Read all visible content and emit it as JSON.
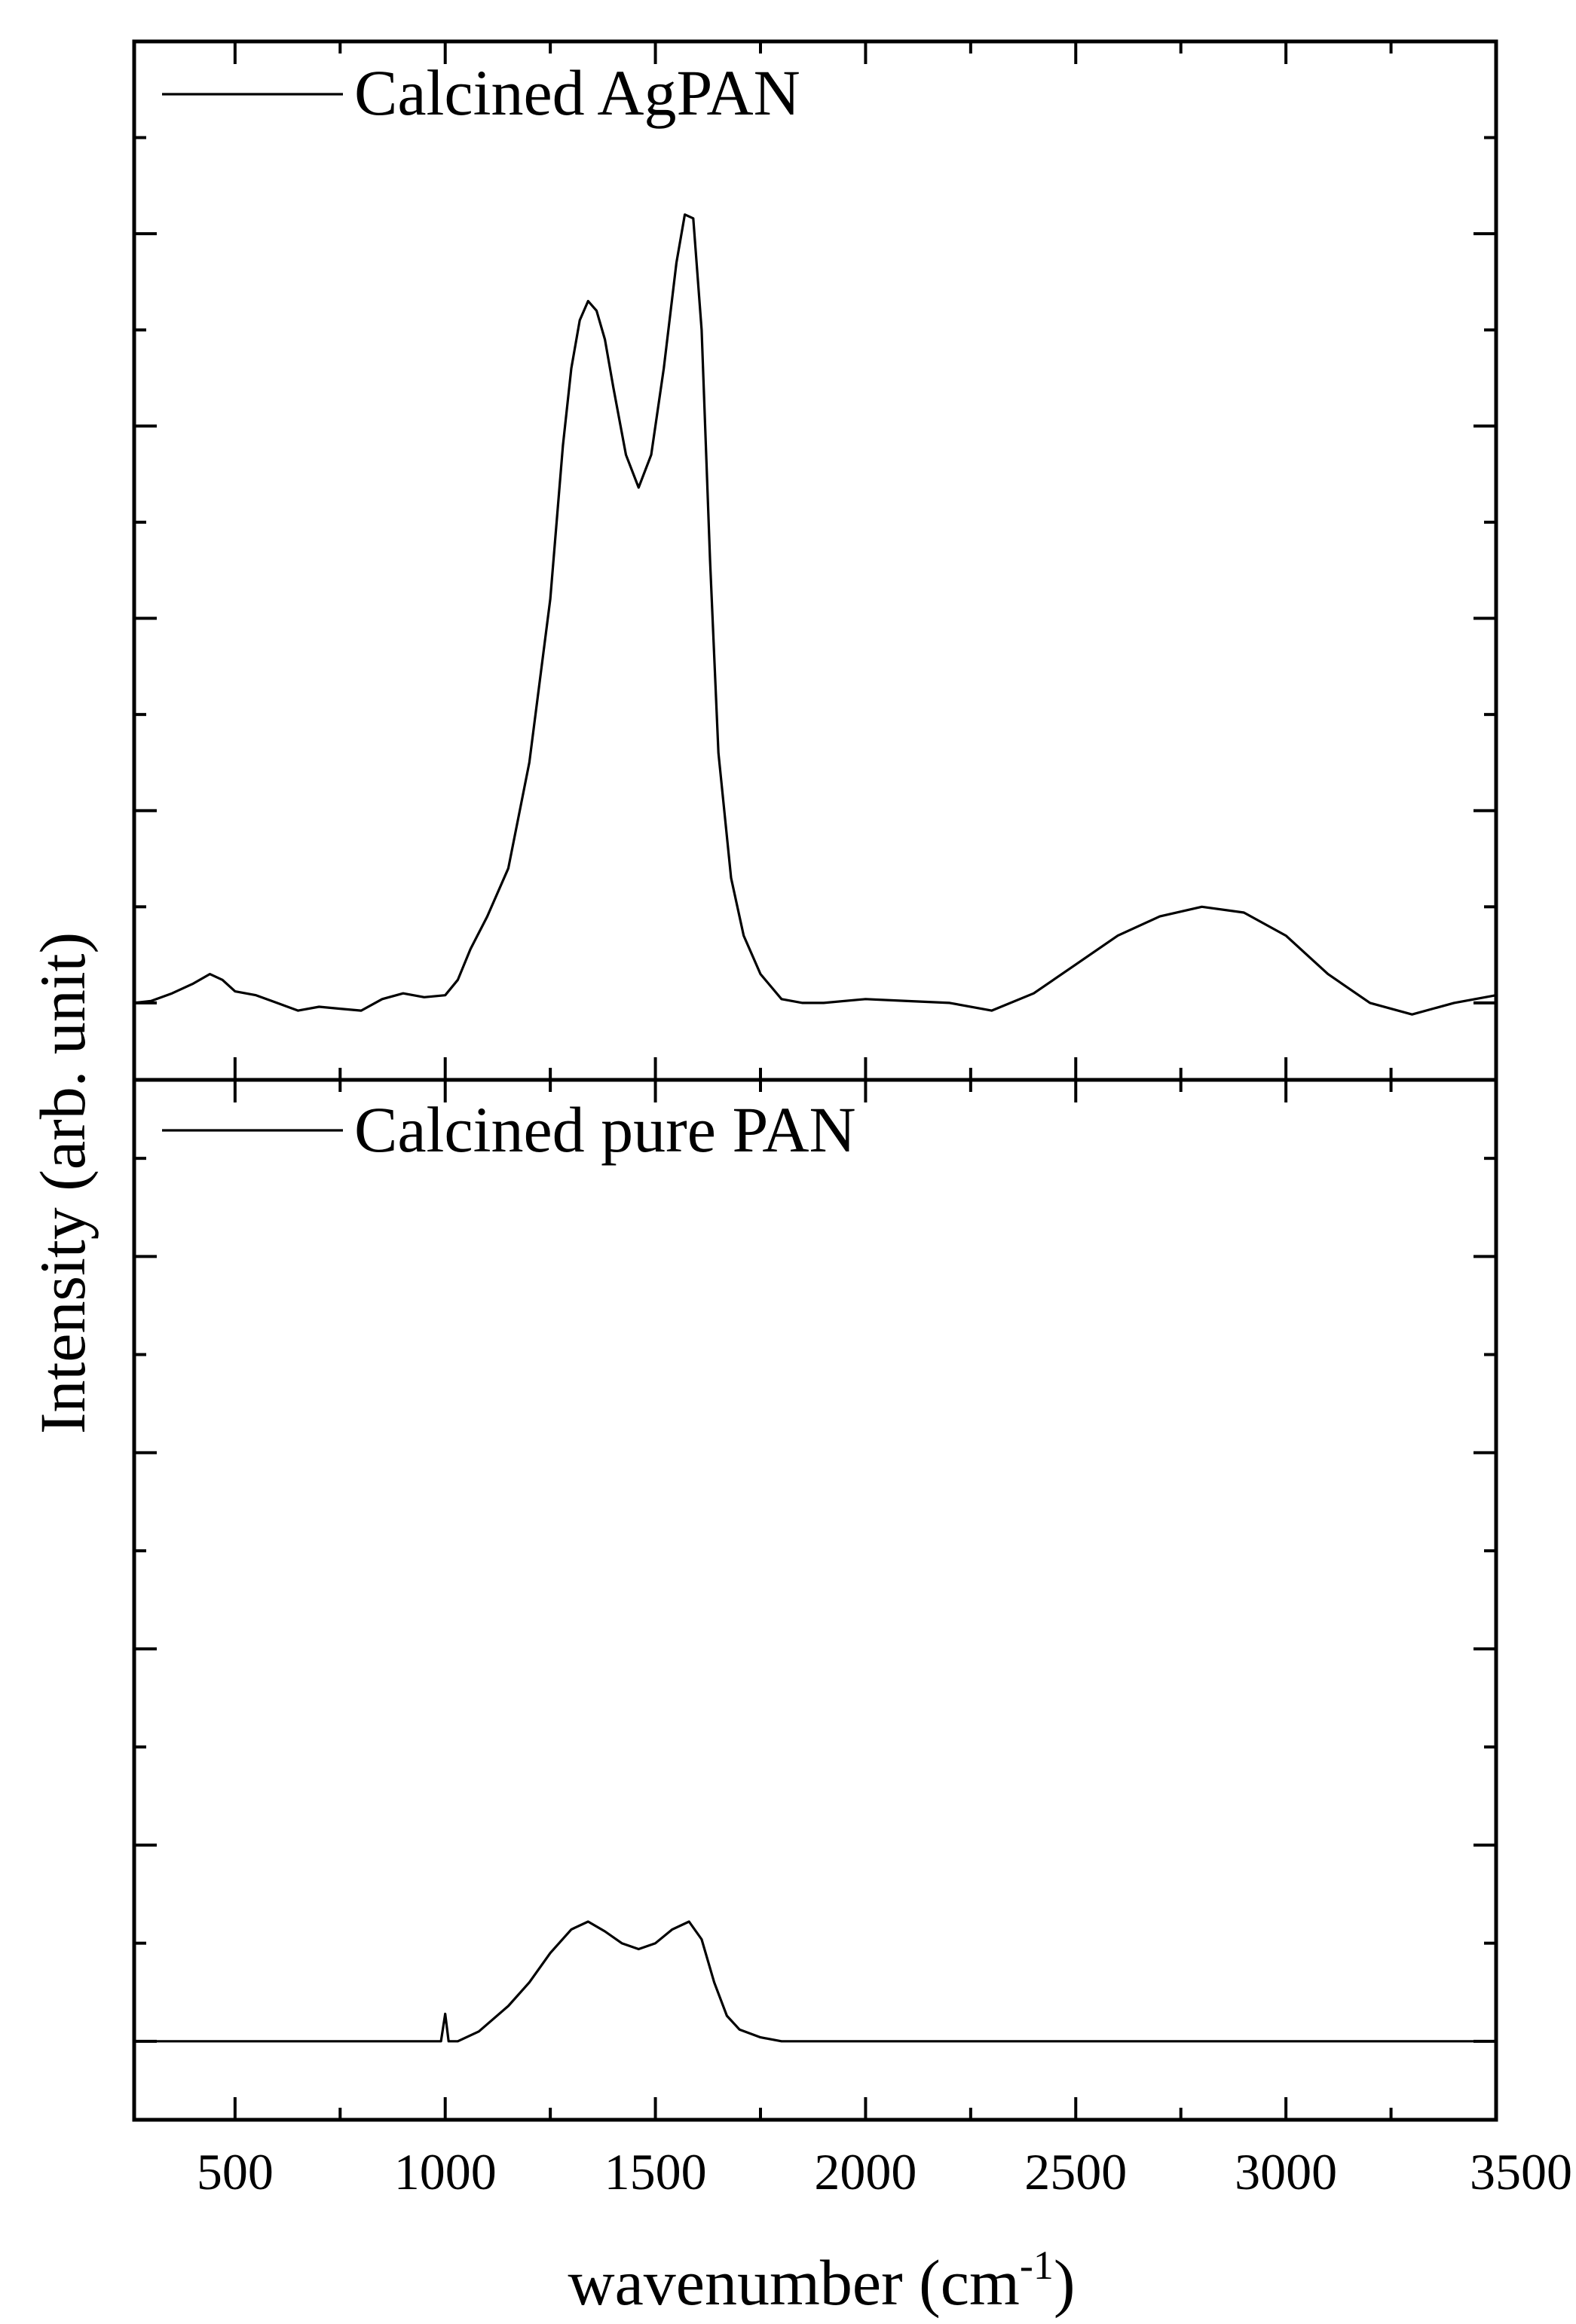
{
  "chart_data": {
    "type": "line",
    "layout": "stacked-panels",
    "xlabel": "wavenumber (cm",
    "xlabel_superscript": "-1",
    "xlabel_close": ")",
    "ylabel": "Intensity (arb. unit)",
    "xlim": [
      260,
      3500
    ],
    "x_tick_labels": [
      "500",
      "1000",
      "1500",
      "2000",
      "2500",
      "3000",
      "3500"
    ],
    "x_tick_values": [
      500,
      1000,
      1500,
      2000,
      2500,
      3000,
      3500
    ],
    "x_minor_step": 250,
    "grid": false,
    "legend_placement": "top-left",
    "panels": [
      {
        "name": "Calcined AgPAN",
        "ylim": [
          -0.4,
          5.0
        ],
        "y_tick_values": [
          0,
          1,
          2,
          3,
          4
        ],
        "y_minor_step": 0.5,
        "points": [
          [
            260,
            0
          ],
          [
            300,
            0.01
          ],
          [
            350,
            0.05
          ],
          [
            400,
            0.1
          ],
          [
            440,
            0.15
          ],
          [
            470,
            0.12
          ],
          [
            500,
            0.06
          ],
          [
            550,
            0.04
          ],
          [
            600,
            0.0
          ],
          [
            650,
            -0.04
          ],
          [
            700,
            -0.02
          ],
          [
            750,
            -0.03
          ],
          [
            800,
            -0.04
          ],
          [
            850,
            0.02
          ],
          [
            900,
            0.05
          ],
          [
            950,
            0.03
          ],
          [
            1000,
            0.04
          ],
          [
            1030,
            0.12
          ],
          [
            1060,
            0.28
          ],
          [
            1100,
            0.45
          ],
          [
            1150,
            0.7
          ],
          [
            1200,
            1.25
          ],
          [
            1250,
            2.1
          ],
          [
            1280,
            2.9
          ],
          [
            1300,
            3.3
          ],
          [
            1320,
            3.55
          ],
          [
            1340,
            3.65
          ],
          [
            1360,
            3.6
          ],
          [
            1380,
            3.45
          ],
          [
            1400,
            3.2
          ],
          [
            1430,
            2.85
          ],
          [
            1460,
            2.68
          ],
          [
            1490,
            2.85
          ],
          [
            1520,
            3.3
          ],
          [
            1550,
            3.85
          ],
          [
            1570,
            4.1
          ],
          [
            1590,
            4.08
          ],
          [
            1610,
            3.5
          ],
          [
            1630,
            2.3
          ],
          [
            1650,
            1.3
          ],
          [
            1680,
            0.65
          ],
          [
            1710,
            0.35
          ],
          [
            1750,
            0.15
          ],
          [
            1800,
            0.02
          ],
          [
            1850,
            0.0
          ],
          [
            1900,
            0.0
          ],
          [
            2000,
            0.02
          ],
          [
            2100,
            0.01
          ],
          [
            2200,
            0.0
          ],
          [
            2300,
            -0.04
          ],
          [
            2400,
            0.05
          ],
          [
            2500,
            0.2
          ],
          [
            2600,
            0.35
          ],
          [
            2700,
            0.45
          ],
          [
            2800,
            0.5
          ],
          [
            2900,
            0.47
          ],
          [
            3000,
            0.35
          ],
          [
            3100,
            0.15
          ],
          [
            3200,
            0.0
          ],
          [
            3300,
            -0.06
          ],
          [
            3400,
            0.0
          ],
          [
            3500,
            0.04
          ]
        ]
      },
      {
        "name": "Calcined pure PAN",
        "ylim": [
          -0.4,
          4.9
        ],
        "y_tick_values": [
          0,
          1,
          2,
          3,
          4
        ],
        "y_minor_step": 0.5,
        "points": [
          [
            260,
            0
          ],
          [
            900,
            0.0
          ],
          [
            990,
            0.0
          ],
          [
            1000,
            0.14
          ],
          [
            1008,
            0.0
          ],
          [
            1030,
            0.0
          ],
          [
            1080,
            0.05
          ],
          [
            1150,
            0.18
          ],
          [
            1200,
            0.3
          ],
          [
            1250,
            0.45
          ],
          [
            1300,
            0.57
          ],
          [
            1340,
            0.61
          ],
          [
            1380,
            0.56
          ],
          [
            1420,
            0.5
          ],
          [
            1460,
            0.47
          ],
          [
            1500,
            0.5
          ],
          [
            1540,
            0.57
          ],
          [
            1580,
            0.61
          ],
          [
            1610,
            0.52
          ],
          [
            1640,
            0.3
          ],
          [
            1670,
            0.13
          ],
          [
            1700,
            0.06
          ],
          [
            1750,
            0.02
          ],
          [
            1800,
            0.0
          ],
          [
            2500,
            0.0
          ],
          [
            3000,
            0.0
          ],
          [
            3500,
            0.0
          ]
        ]
      }
    ]
  }
}
